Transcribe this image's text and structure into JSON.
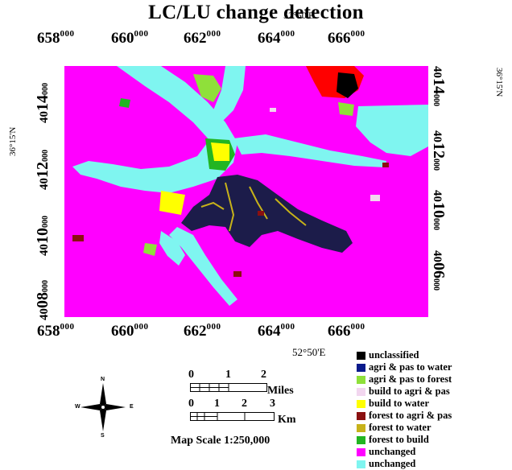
{
  "title": "LC/LU change detection",
  "longitude_label": "52°50'E",
  "latitude_label": "36°15'N",
  "x_ticks": [
    {
      "prefix": "6",
      "major": "58",
      "minor": "000"
    },
    {
      "prefix": "6",
      "major": "60",
      "minor": "000"
    },
    {
      "prefix": "6",
      "major": "62",
      "minor": "000"
    },
    {
      "prefix": "6",
      "major": "64",
      "minor": "000"
    },
    {
      "prefix": "6",
      "major": "66",
      "minor": "000"
    }
  ],
  "y_ticks": [
    {
      "prefix": "40",
      "major": "14",
      "minor": "000"
    },
    {
      "prefix": "40",
      "major": "12",
      "minor": "000"
    },
    {
      "prefix": "40",
      "major": "10",
      "minor": "000"
    },
    {
      "prefix": "40",
      "major": "08",
      "minor": "000"
    },
    {
      "prefix": "40",
      "major": "06",
      "minor": "000"
    }
  ],
  "legend": [
    {
      "label": "unclassified",
      "color": "#000000"
    },
    {
      "label": "agri & pas to water",
      "color": "#0a1a8c"
    },
    {
      "label": "agri & pas to forest",
      "color": "#8fe03a"
    },
    {
      "label": "build to agri & pas",
      "color": "#f2d6ef"
    },
    {
      "label": "build to water",
      "color": "#ffff00"
    },
    {
      "label": "forest to agri & pas",
      "color": "#8a1010"
    },
    {
      "label": "forest to water",
      "color": "#c7b21a"
    },
    {
      "label": "forest to build",
      "color": "#22b522"
    },
    {
      "label": "unchanged",
      "color": "#ff00ff"
    },
    {
      "label": "unchanged",
      "color": "#7ff5f0"
    }
  ],
  "scalebar": {
    "miles_ticks": [
      "0",
      "1",
      "2"
    ],
    "miles_unit": "Miles",
    "km_ticks": [
      "0",
      "1",
      "2",
      "3"
    ],
    "km_unit": "Km",
    "map_scale": "Map Scale 1:250,000"
  },
  "compass": {
    "n": "N",
    "s": "S",
    "e": "E",
    "w": "W"
  },
  "colors": {
    "unchanged_magenta": "#ff00ff",
    "unchanged_cyan": "#7ff5f0",
    "water_dark": "#1c1c4a",
    "forest_to_water": "#c7b21a",
    "build_to_water": "#ffff00",
    "agri_to_forest": "#8fe03a",
    "forest_to_build": "#22b522",
    "forest_to_agri": "#8a1010",
    "cloud_red": "#ff0000"
  }
}
